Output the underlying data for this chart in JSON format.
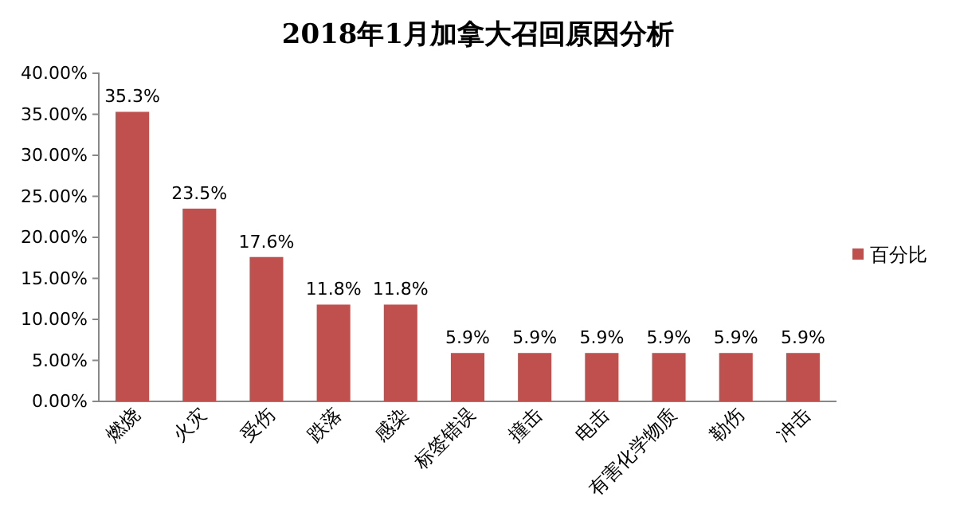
{
  "chart_data": {
    "type": "bar",
    "title": "2018年1月加拿大召回原因分析",
    "categories": [
      "燃烧",
      "火灾",
      "受伤",
      "跌落",
      "感染",
      "标签错误",
      "撞击",
      "电击",
      "有害化学物质",
      "勒伤",
      "冲击"
    ],
    "series": [
      {
        "name": "百分比",
        "color": "#c0504d",
        "values": [
          35.3,
          23.5,
          17.6,
          11.8,
          11.8,
          5.9,
          5.9,
          5.9,
          5.9,
          5.9,
          5.9
        ],
        "value_labels": [
          "35.3%",
          "23.5%",
          "17.6%",
          "11.8%",
          "11.8%",
          "5.9%",
          "5.9%",
          "5.9%",
          "5.9%",
          "5.9%",
          "5.9%"
        ]
      }
    ],
    "ylim": [
      0,
      40
    ],
    "yticks": [
      {
        "value": 0,
        "label": "0.00%"
      },
      {
        "value": 5,
        "label": "5.00%"
      },
      {
        "value": 10,
        "label": "10.00%"
      },
      {
        "value": 15,
        "label": "15.00%"
      },
      {
        "value": 20,
        "label": "20.00%"
      },
      {
        "value": 25,
        "label": "25.00%"
      },
      {
        "value": 30,
        "label": "30.00%"
      },
      {
        "value": 35,
        "label": "35.00%"
      },
      {
        "value": 40,
        "label": "40.00%"
      }
    ],
    "legend": "right"
  }
}
